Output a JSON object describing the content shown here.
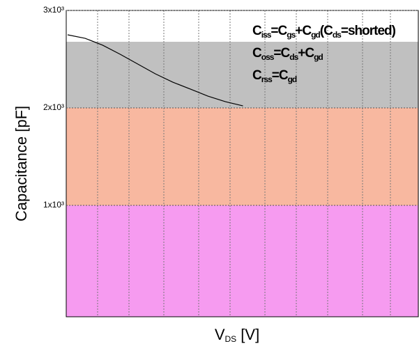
{
  "chart_data": {
    "type": "line",
    "ylabel": "Capacitance  [pF]",
    "xlabel": [
      "V",
      "DS",
      "  [V]"
    ],
    "legend": [
      [
        "C",
        "iss",
        "=C",
        "gs",
        "+C",
        "gd",
        "(C",
        "ds",
        "=shorted)"
      ],
      [
        "C",
        "oss",
        "=C",
        "ds",
        "+C",
        "gd"
      ],
      [
        "C",
        "rss",
        "=C",
        "gd"
      ]
    ],
    "categories": [
      null,
      null,
      null,
      null,
      null,
      null,
      null,
      null,
      null,
      null,
      null,
      null,
      null,
      null,
      null,
      null,
      null,
      null,
      null,
      null,
      null
    ],
    "series": [
      {
        "color": "#000000",
        "values": [
          2750,
          2714,
          2643,
          2550,
          2450,
          2350,
          2264,
          2193,
          2121,
          2064,
          2021,
          null,
          null,
          null,
          null,
          null,
          null,
          null,
          null,
          null,
          null
        ]
      }
    ],
    "ylim": [
      0,
      3000
    ],
    "yticks": [
      {
        "value": 3000,
        "label": "3x10³"
      },
      {
        "value": 2000,
        "label": "2x10³"
      },
      {
        "value": 1000,
        "label": "1x10³"
      }
    ],
    "grid": true
  }
}
